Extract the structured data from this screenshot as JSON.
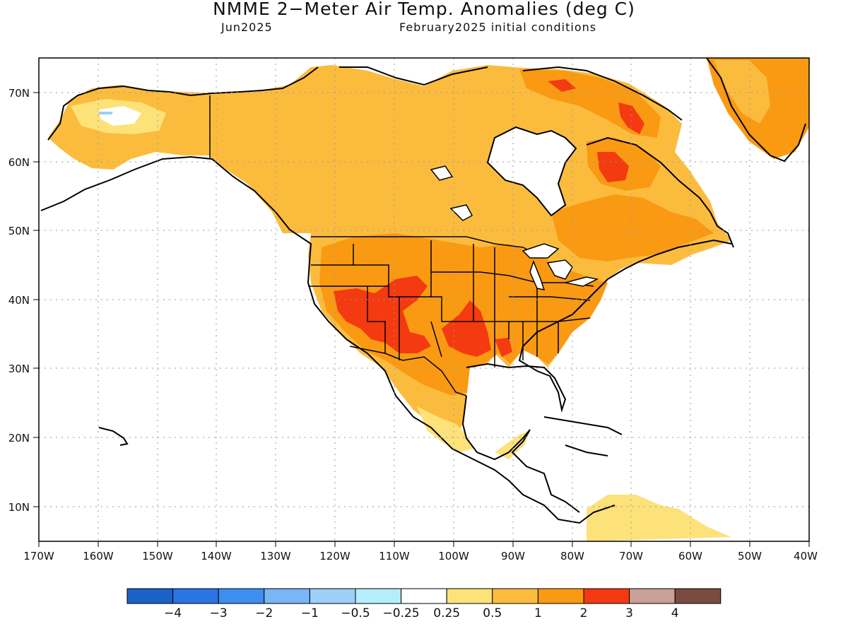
{
  "title": "NMME 2−Meter Air Temp. Anomalies (deg C)",
  "subtitle_left": "Jun2025",
  "subtitle_right": "February2025 initial conditions",
  "lat_labels": [
    "70N",
    "60N",
    "50N",
    "40N",
    "30N",
    "20N",
    "10N"
  ],
  "lon_labels": [
    "170W",
    "160W",
    "150W",
    "140W",
    "130W",
    "120W",
    "110W",
    "100W",
    "90W",
    "80W",
    "70W",
    "60W",
    "50W",
    "40W"
  ],
  "legend": {
    "colors": [
      "#1a62c8",
      "#2a74e4",
      "#3d8ef0",
      "#79b6f5",
      "#9dcff8",
      "#b4eefa",
      "#ffffff",
      "#fde27a",
      "#fbbc3e",
      "#f99a12",
      "#f43a10",
      "#c9a096",
      "#7a4b40"
    ],
    "labels": [
      "−4",
      "−3",
      "−2",
      "−1",
      "−0.5",
      "−0.25",
      "0.25",
      "0.5",
      "1",
      "2",
      "3",
      "4"
    ]
  },
  "colors": {
    "anom_025_05": "#fde27a",
    "anom_05_1": "#fbbc3e",
    "anom_1_2": "#f99a12",
    "anom_2_3": "#f43a10",
    "anom_cold": "#9dcff8",
    "grid": "#9a9a9a"
  }
}
